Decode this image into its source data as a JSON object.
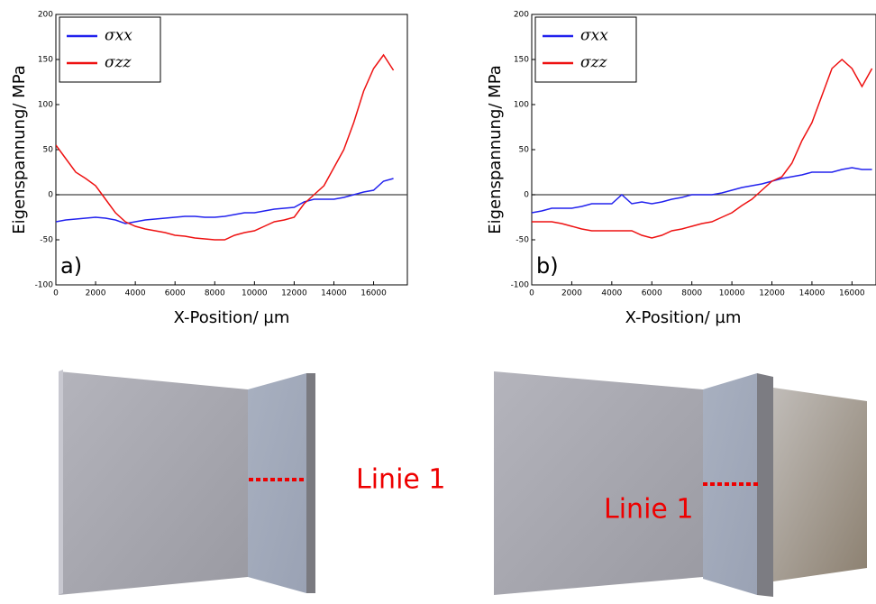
{
  "chart_data": [
    {
      "type": "line",
      "panel_label": "a)",
      "x_label": "X-Position/ µm",
      "y_label": "Eigenspannung/ MPa",
      "x": [
        0,
        500,
        1000,
        1500,
        2000,
        2500,
        3000,
        3500,
        4000,
        4500,
        5000,
        5500,
        6000,
        6500,
        7000,
        7500,
        8000,
        8500,
        9000,
        9500,
        10000,
        10500,
        11000,
        11500,
        12000,
        12500,
        13000,
        13500,
        14000,
        14500,
        15000,
        15500,
        16000,
        16500,
        17000
      ],
      "series": [
        {
          "name": "σxx",
          "color": "#2222ee",
          "values": [
            -30,
            -28,
            -27,
            -26,
            -25,
            -26,
            -28,
            -32,
            -30,
            -28,
            -27,
            -26,
            -25,
            -24,
            -24,
            -25,
            -25,
            -24,
            -22,
            -20,
            -20,
            -18,
            -16,
            -15,
            -14,
            -8,
            -5,
            -5,
            -5,
            -3,
            0,
            3,
            5,
            15,
            18
          ]
        },
        {
          "name": "σzz",
          "color": "#ee1111",
          "values": [
            55,
            40,
            25,
            18,
            10,
            -5,
            -20,
            -30,
            -35,
            -38,
            -40,
            -42,
            -45,
            -46,
            -48,
            -49,
            -50,
            -50,
            -45,
            -42,
            -40,
            -35,
            -30,
            -28,
            -25,
            -10,
            0,
            10,
            30,
            50,
            80,
            115,
            140,
            155,
            138
          ]
        }
      ],
      "xlim": [
        0,
        17700
      ],
      "ylim": [
        -100,
        200
      ],
      "xticks": [
        0,
        2000,
        4000,
        6000,
        8000,
        10000,
        12000,
        14000,
        16000
      ],
      "yticks": [
        -100,
        -50,
        0,
        50,
        100,
        150,
        200
      ]
    },
    {
      "type": "line",
      "panel_label": "b)",
      "x_label": "X-Position/ µm",
      "y_label": "Eigenspannung/ MPa",
      "x": [
        0,
        500,
        1000,
        1500,
        2000,
        2500,
        3000,
        3500,
        4000,
        4500,
        5000,
        5500,
        6000,
        6500,
        7000,
        7500,
        8000,
        8500,
        9000,
        9500,
        10000,
        10500,
        11000,
        11500,
        12000,
        12500,
        13000,
        13500,
        14000,
        14500,
        15000,
        15500,
        16000,
        16500,
        17000
      ],
      "series": [
        {
          "name": "σxx",
          "color": "#2222ee",
          "values": [
            -20,
            -18,
            -15,
            -15,
            -15,
            -13,
            -10,
            -10,
            -10,
            0,
            -10,
            -8,
            -10,
            -8,
            -5,
            -3,
            0,
            0,
            0,
            2,
            5,
            8,
            10,
            12,
            15,
            18,
            20,
            22,
            25,
            25,
            25,
            28,
            30,
            28,
            28
          ]
        },
        {
          "name": "σzz",
          "color": "#ee1111",
          "values": [
            -30,
            -30,
            -30,
            -32,
            -35,
            -38,
            -40,
            -40,
            -40,
            -40,
            -40,
            -45,
            -48,
            -45,
            -40,
            -38,
            -35,
            -32,
            -30,
            -25,
            -20,
            -12,
            -5,
            5,
            15,
            20,
            35,
            60,
            80,
            110,
            140,
            150,
            140,
            120,
            140
          ]
        }
      ],
      "xlim": [
        0,
        17200
      ],
      "ylim": [
        -100,
        200
      ],
      "xticks": [
        0,
        2000,
        4000,
        6000,
        8000,
        10000,
        12000,
        14000,
        16000
      ],
      "yticks": [
        -100,
        -50,
        0,
        50,
        100,
        150,
        200
      ]
    }
  ],
  "images": [
    {
      "label": "Linie 1"
    },
    {
      "label": "Linie 1"
    }
  ]
}
